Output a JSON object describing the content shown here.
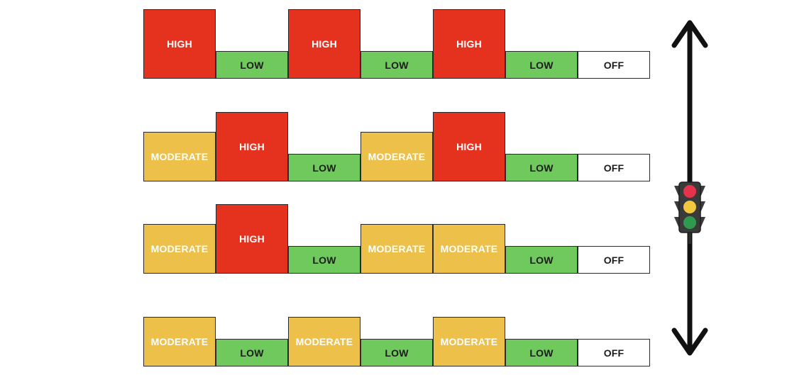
{
  "rows": [
    {
      "blocks": [
        {
          "level": "high",
          "label": "HIGH"
        },
        {
          "level": "low",
          "label": "LOW"
        },
        {
          "level": "high",
          "label": "HIGH"
        },
        {
          "level": "low",
          "label": "LOW"
        },
        {
          "level": "high",
          "label": "HIGH"
        },
        {
          "level": "low",
          "label": "LOW"
        },
        {
          "level": "off",
          "label": "OFF"
        }
      ]
    },
    {
      "blocks": [
        {
          "level": "moderate",
          "label": "MODERATE"
        },
        {
          "level": "high",
          "label": "HIGH"
        },
        {
          "level": "low",
          "label": "LOW"
        },
        {
          "level": "moderate",
          "label": "MODERATE"
        },
        {
          "level": "high",
          "label": "HIGH"
        },
        {
          "level": "low",
          "label": "LOW"
        },
        {
          "level": "off",
          "label": "OFF"
        }
      ]
    },
    {
      "blocks": [
        {
          "level": "moderate",
          "label": "MODERATE"
        },
        {
          "level": "high",
          "label": "HIGH"
        },
        {
          "level": "low",
          "label": "LOW"
        },
        {
          "level": "moderate",
          "label": "MODERATE"
        },
        {
          "level": "moderate",
          "label": "MODERATE"
        },
        {
          "level": "low",
          "label": "LOW"
        },
        {
          "level": "off",
          "label": "OFF"
        }
      ]
    },
    {
      "blocks": [
        {
          "level": "moderate",
          "label": "MODERATE"
        },
        {
          "level": "low",
          "label": "LOW"
        },
        {
          "level": "moderate",
          "label": "MODERATE"
        },
        {
          "level": "low",
          "label": "LOW"
        },
        {
          "level": "moderate",
          "label": "MODERATE"
        },
        {
          "level": "low",
          "label": "LOW"
        },
        {
          "level": "off",
          "label": "OFF"
        }
      ]
    }
  ],
  "colors": {
    "high": "#e5321f",
    "moderate": "#edc04a",
    "low": "#6fc95d",
    "off": "#ffffff",
    "arrow": "#111111",
    "light_red": "#e5334b",
    "light_yellow": "#f3c83e",
    "light_green": "#2f9a4e"
  },
  "icons": {
    "arrow": "double-headed-vertical-arrow-icon",
    "traffic_light": "traffic-light-icon"
  }
}
